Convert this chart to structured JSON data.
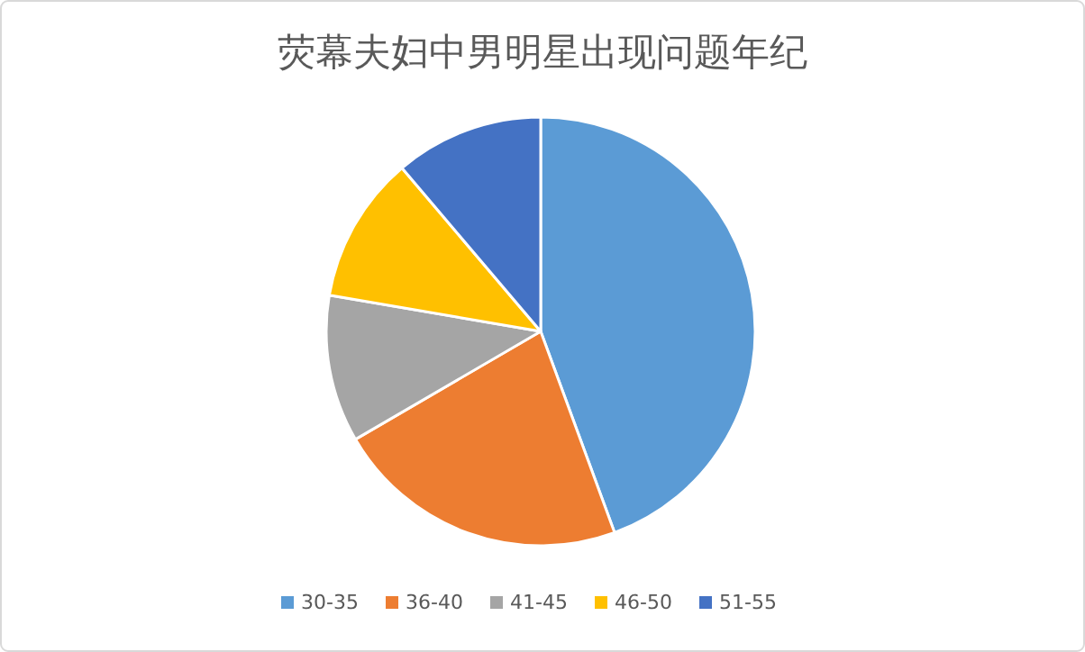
{
  "chart_data": {
    "type": "pie",
    "title": "荧幕夫妇中男明星出现问题年纪",
    "categories": [
      "30-35",
      "36-40",
      "41-45",
      "46-50",
      "51-55"
    ],
    "values": [
      44.4,
      22.2,
      11.1,
      11.1,
      11.2
    ],
    "colors": [
      "#5b9bd5",
      "#ed7d31",
      "#a5a5a5",
      "#ffc000",
      "#4472c4"
    ],
    "legend": "bottom"
  }
}
